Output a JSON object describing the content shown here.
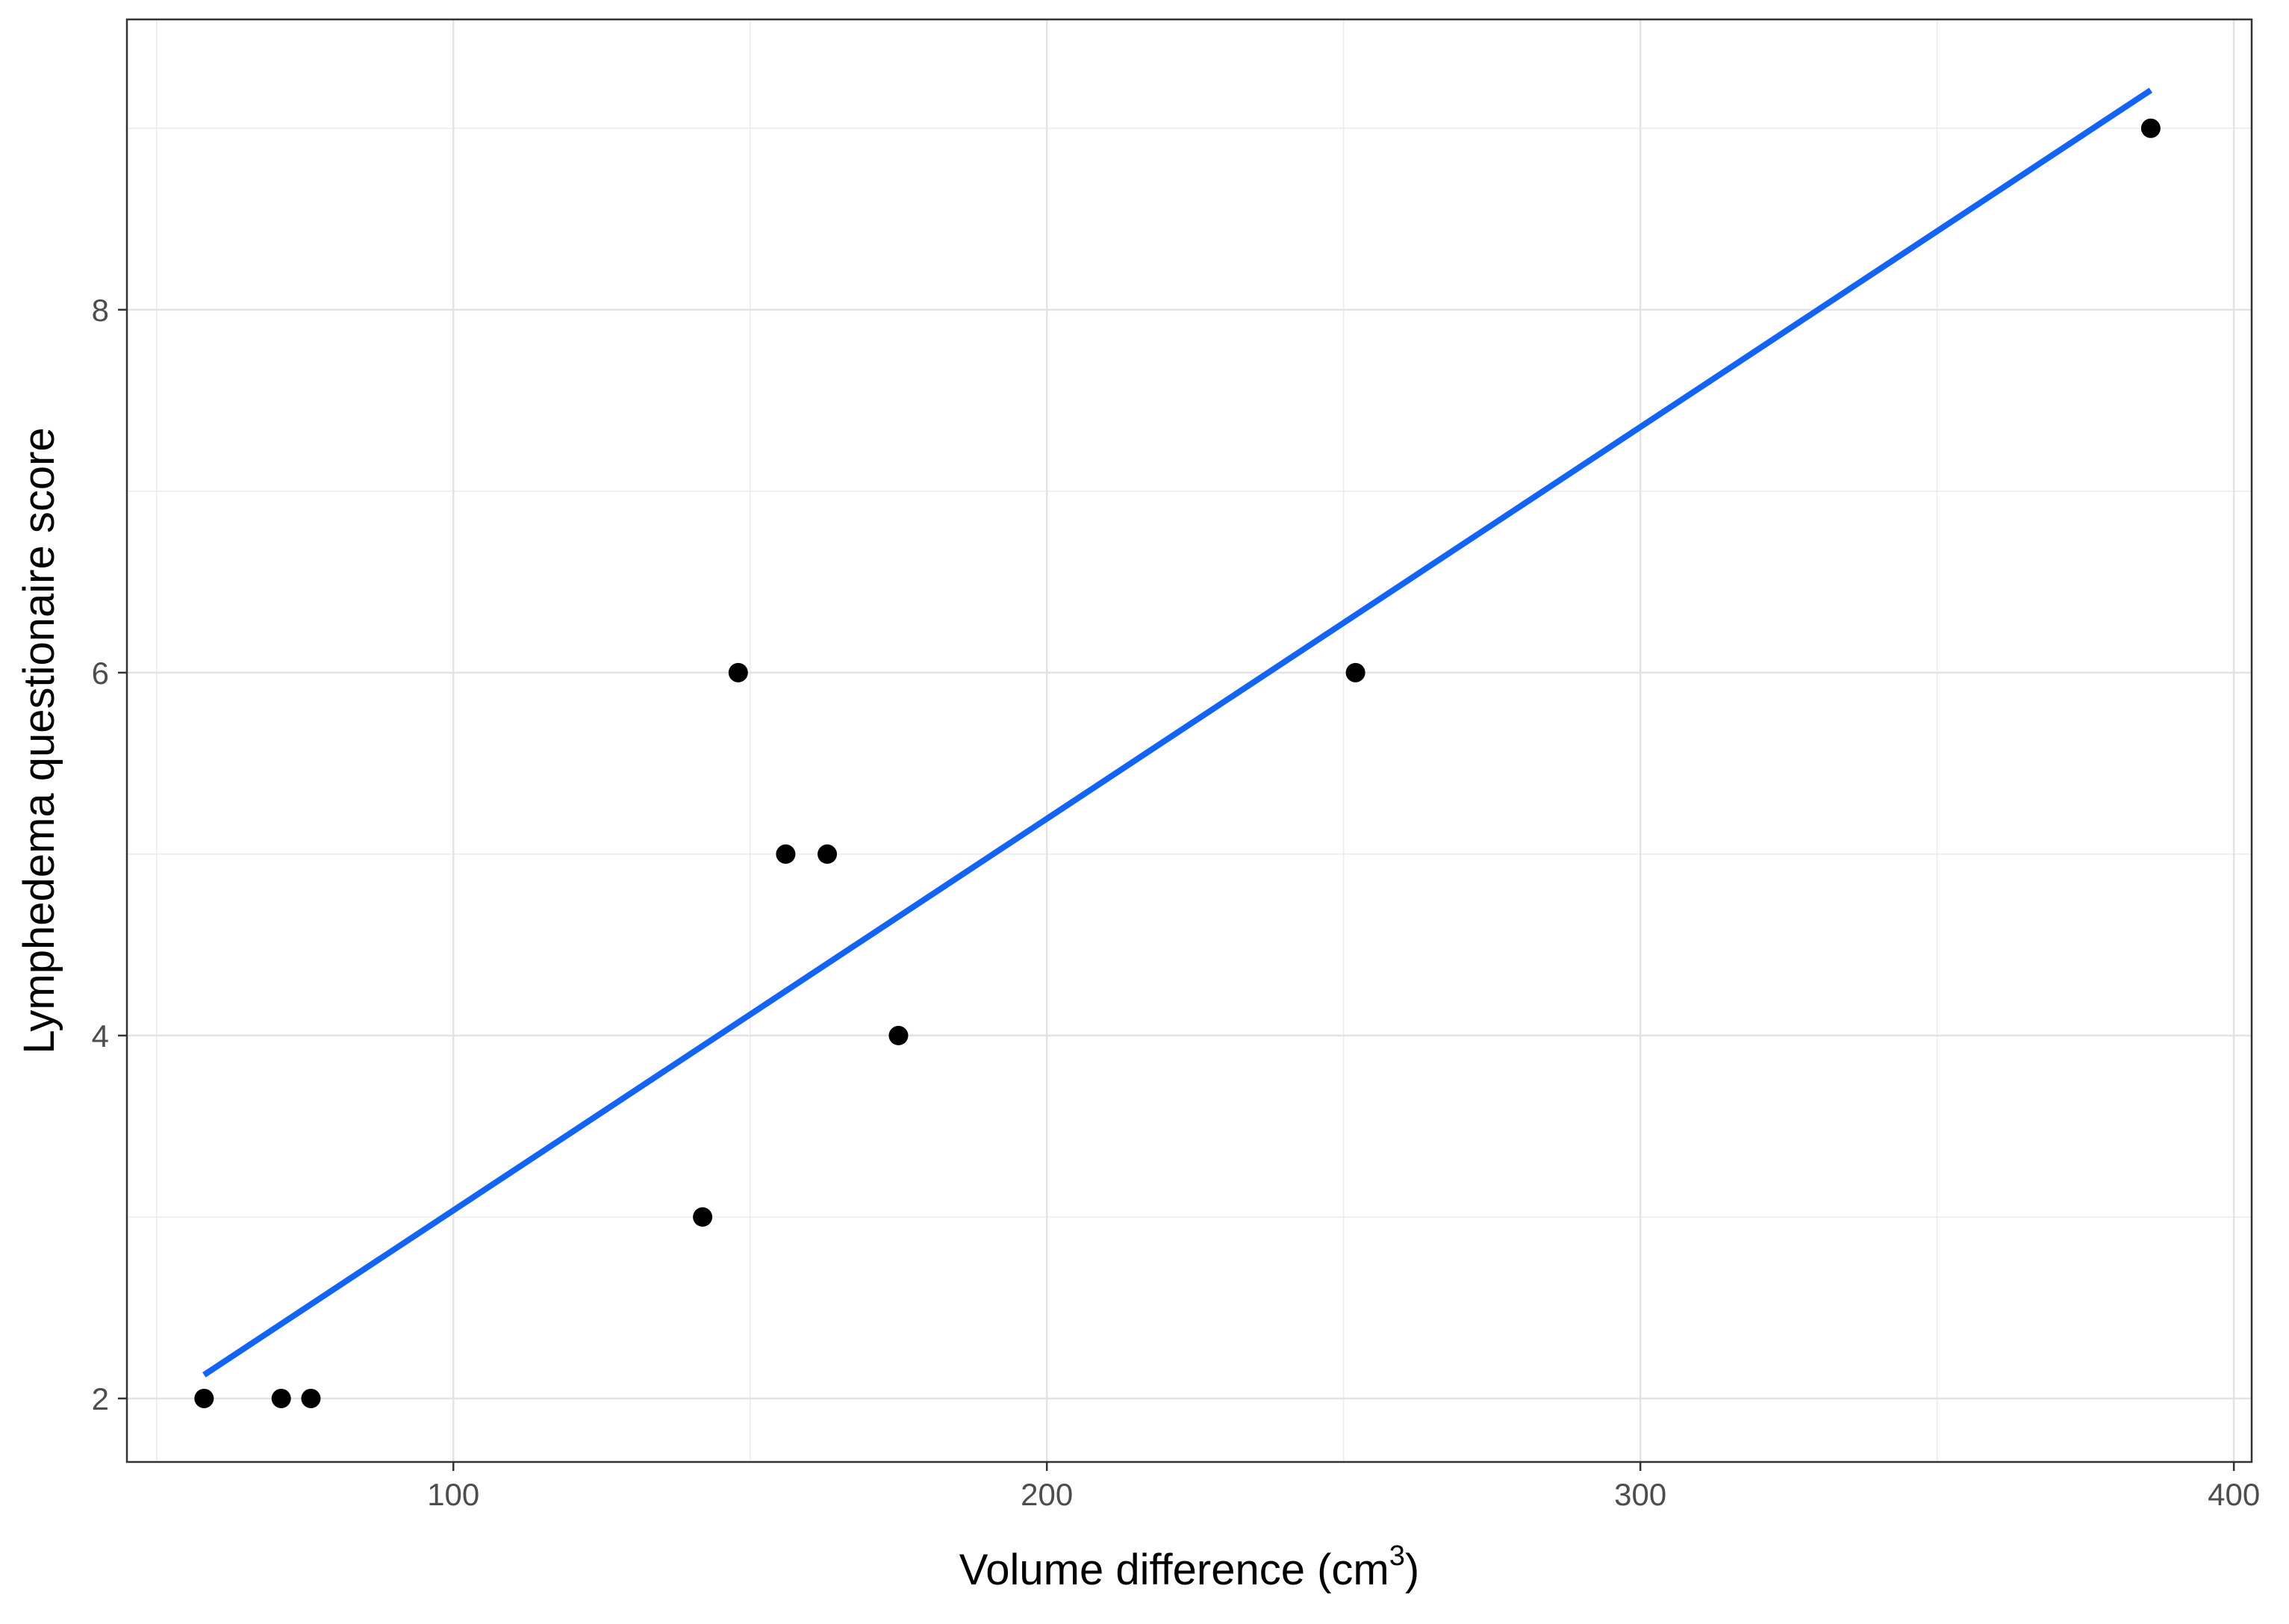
{
  "chart_data": {
    "type": "scatter",
    "title": "",
    "xlabel": "Volume difference (cm",
    "xlabel_superscript": "3",
    "xlabel_suffix": ")",
    "ylabel": "Lymphedema questionaire score",
    "xlim": [
      45,
      403
    ],
    "ylim": [
      1.65,
      9.6
    ],
    "x_ticks": [
      100,
      200,
      300,
      400
    ],
    "x_tick_labels": [
      "100",
      "200",
      "300",
      "400"
    ],
    "y_ticks": [
      2,
      4,
      6,
      8
    ],
    "y_tick_labels": [
      "2",
      "4",
      "6",
      "8"
    ],
    "x_minor_grid": [
      50,
      150,
      250,
      350
    ],
    "y_minor_grid": [
      3,
      5,
      7,
      9
    ],
    "grid": true,
    "theme": "bw",
    "points": {
      "x": [
        58,
        71,
        76,
        142,
        148,
        156,
        163,
        175,
        252,
        386
      ],
      "y": [
        2,
        2,
        2,
        3,
        6,
        5,
        5,
        4,
        6,
        9
      ],
      "color": "#000000"
    },
    "fit_line": {
      "type": "linear",
      "x": [
        58,
        386
      ],
      "y": [
        2.13,
        9.21
      ],
      "color": "#1464F4"
    }
  }
}
